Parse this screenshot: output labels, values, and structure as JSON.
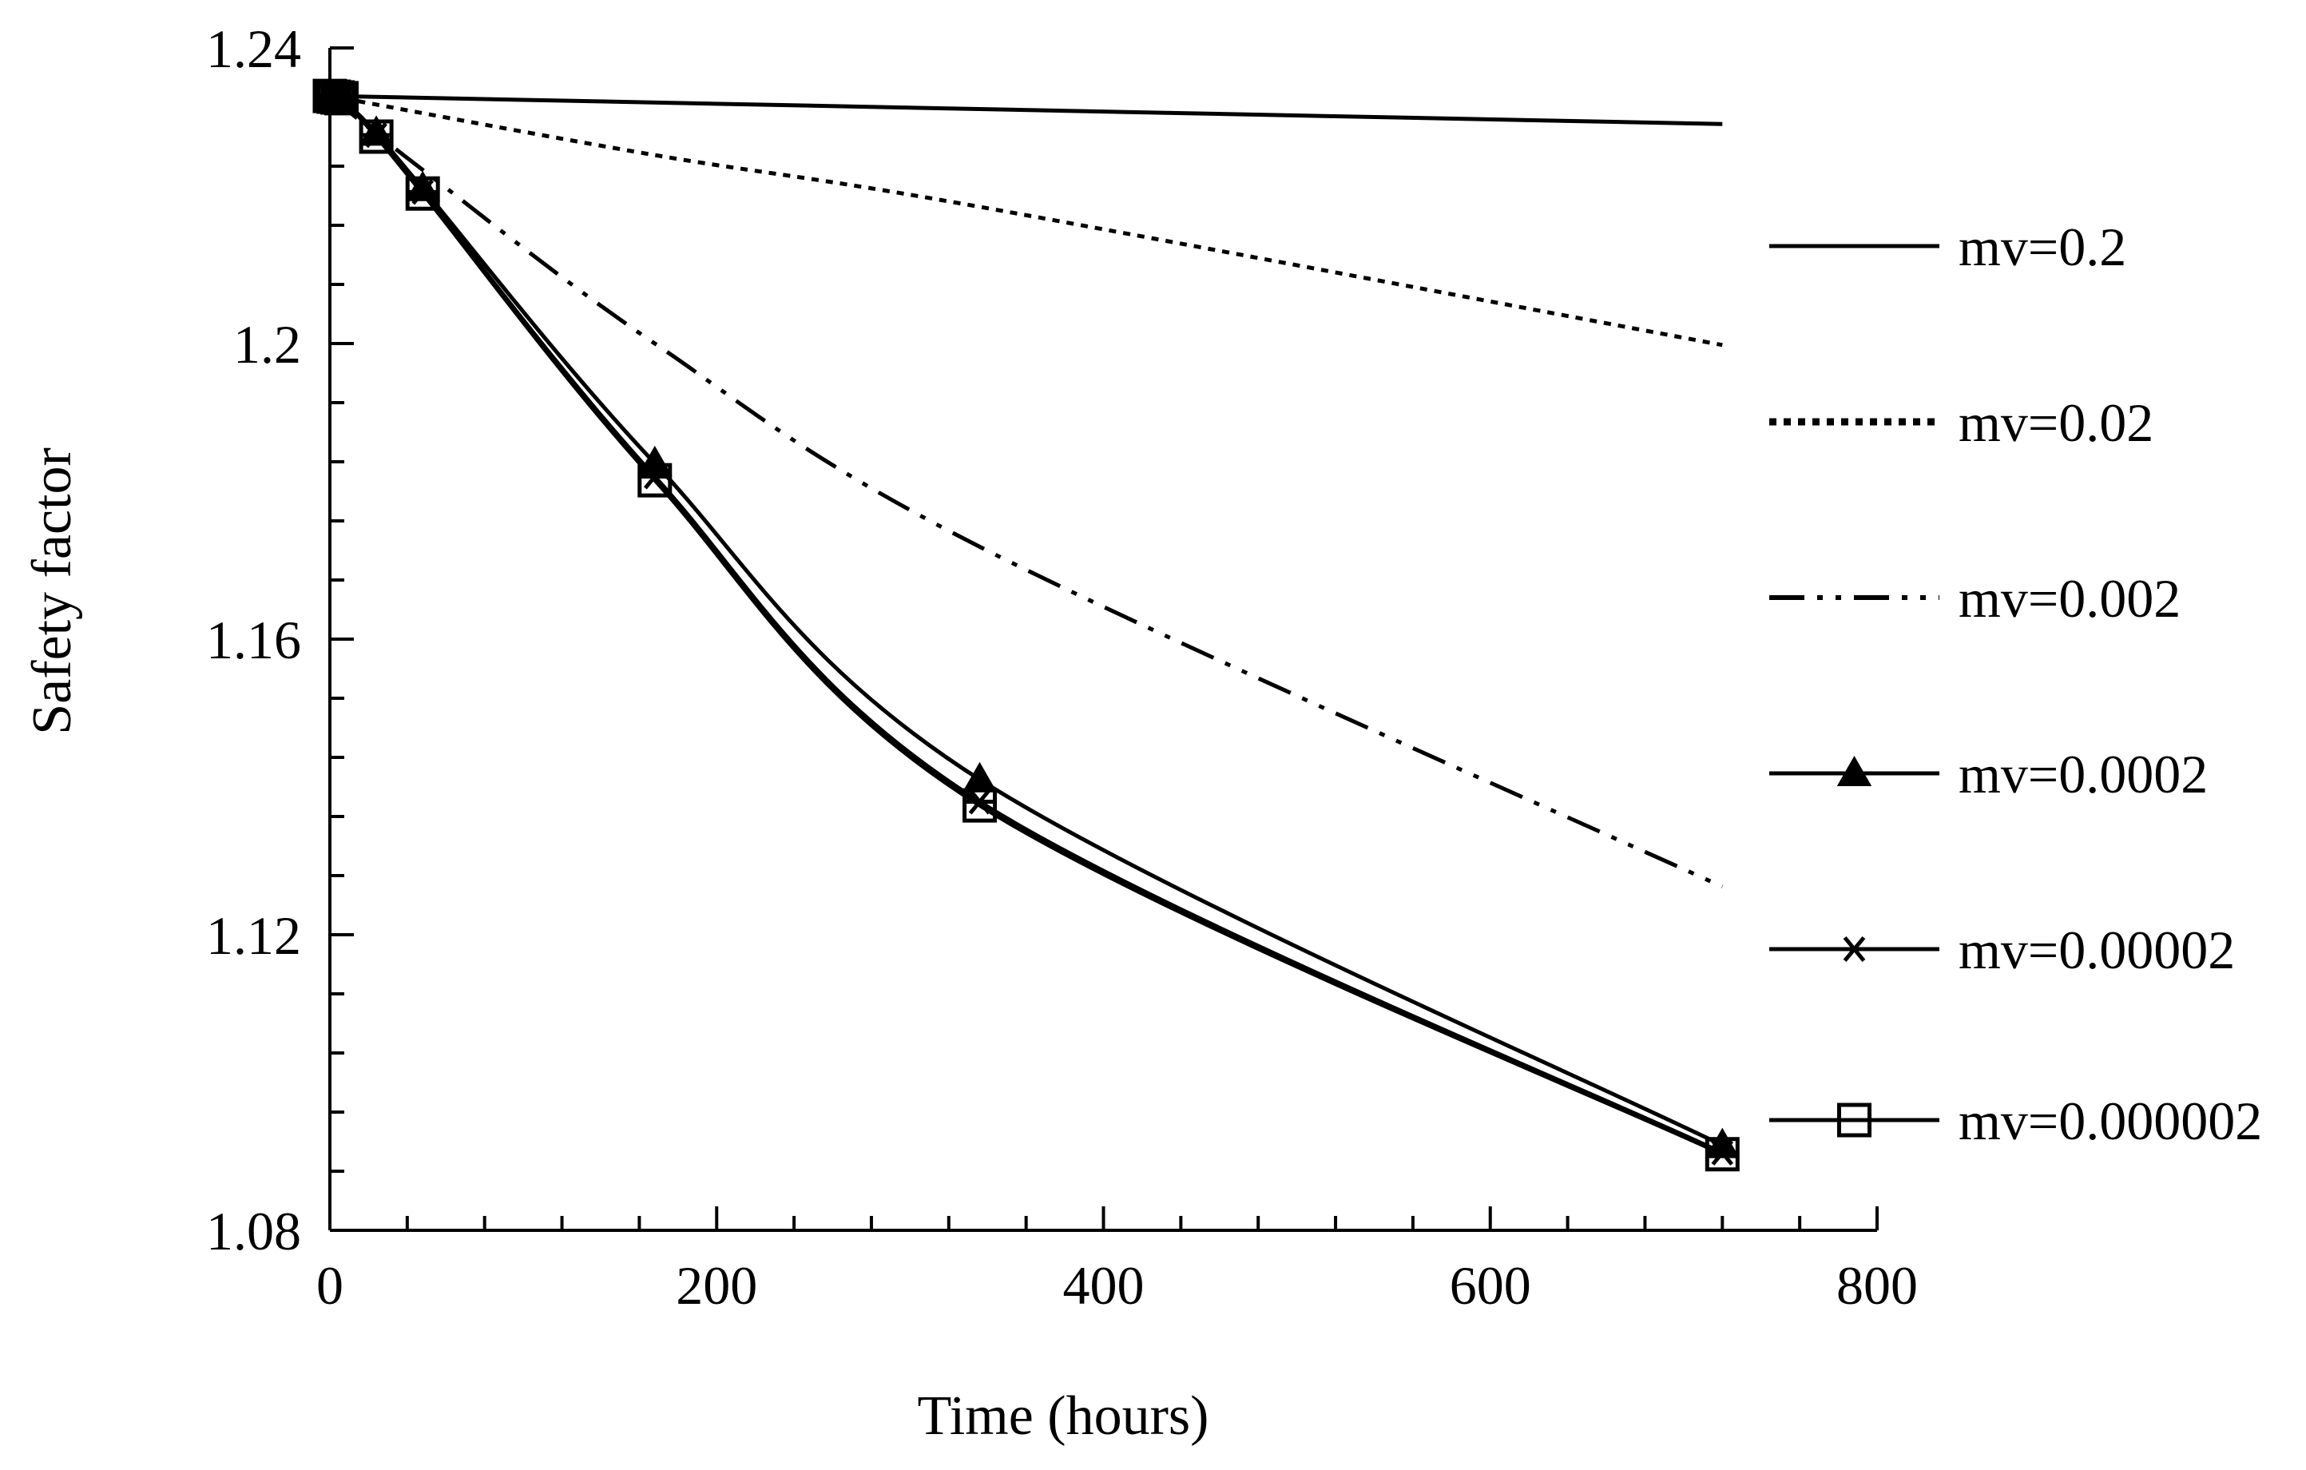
{
  "chart_data": {
    "type": "line",
    "title": "",
    "xlabel": "Time (hours)",
    "ylabel": "Safety factor",
    "xlim": [
      0,
      800
    ],
    "ylim": [
      1.08,
      1.24
    ],
    "x_major_ticks": [
      0,
      200,
      400,
      600,
      800
    ],
    "x_tick_labels": [
      "0",
      "200",
      "400",
      "600",
      "800"
    ],
    "x_minor_step": 40,
    "y_major_ticks": [
      1.08,
      1.12,
      1.16,
      1.2,
      1.24
    ],
    "y_tick_labels": [
      "1.08",
      "1.12",
      "1.16",
      "1.2",
      "1.24"
    ],
    "y_minor_step": 0.008,
    "grid": false,
    "legend_position": "right",
    "series": [
      {
        "name": "mv=0.2",
        "style": "solid",
        "marker": "none",
        "x": [
          0,
          720
        ],
        "y": [
          1.2335,
          1.2297
        ]
      },
      {
        "name": "mv=0.02",
        "style": "dotted",
        "marker": "none",
        "x": [
          0,
          168,
          336,
          720
        ],
        "y": [
          1.2335,
          1.2255,
          1.2185,
          1.1998
        ]
      },
      {
        "name": "mv=0.002",
        "style": "dash-dot-dot",
        "marker": "none",
        "x": [
          0,
          48,
          168,
          336,
          720
        ],
        "y": [
          1.2335,
          1.2235,
          1.2,
          1.1725,
          1.1265
        ]
      },
      {
        "name": "mv=0.0002",
        "style": "solid",
        "marker": "triangle",
        "x": [
          0,
          2,
          4,
          6,
          24,
          48,
          168,
          336,
          720
        ],
        "y": [
          1.2335,
          1.2334,
          1.2333,
          1.2332,
          1.2285,
          1.221,
          1.1838,
          1.141,
          1.0915
        ]
      },
      {
        "name": "mv=0.00002",
        "style": "solid",
        "marker": "asterisk",
        "x": [
          0,
          2,
          4,
          6,
          24,
          48,
          168,
          336,
          720
        ],
        "y": [
          1.2335,
          1.2334,
          1.2333,
          1.2332,
          1.2282,
          1.2205,
          1.182,
          1.138,
          1.0905
        ]
      },
      {
        "name": "mv=0.000002",
        "style": "solid",
        "marker": "square",
        "x": [
          0,
          2,
          4,
          6,
          24,
          48,
          168,
          336,
          720
        ],
        "y": [
          1.2335,
          1.2334,
          1.2333,
          1.2332,
          1.228,
          1.2203,
          1.1815,
          1.1375,
          1.0903
        ]
      }
    ]
  }
}
